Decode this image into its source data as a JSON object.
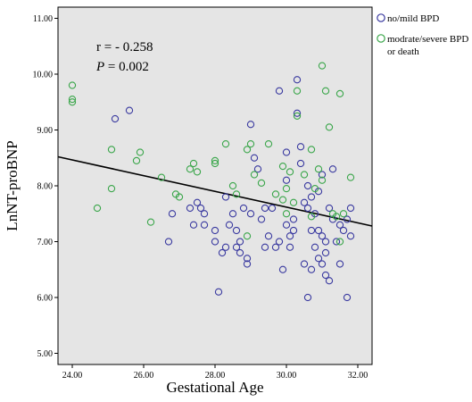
{
  "chart_data": {
    "type": "scatter",
    "title": "",
    "xlabel": "Gestational Age",
    "ylabel": "LnNT-proBNP",
    "xlim": [
      23.6,
      32.4
    ],
    "ylim": [
      4.8,
      11.2
    ],
    "xticks": [
      24,
      26,
      28,
      30,
      32
    ],
    "xtick_labels": [
      "24.00",
      "26.00",
      "28.00",
      "30.00",
      "32.00"
    ],
    "yticks": [
      5,
      6,
      7,
      8,
      9,
      10,
      11
    ],
    "ytick_labels": [
      "5.00",
      "6.00",
      "7.00",
      "8.00",
      "9.00",
      "10.00",
      "11.00"
    ],
    "grid": false,
    "legend_position": "outside-right",
    "background_color": "#e5e5e5",
    "annotations": [
      {
        "label": "r_text",
        "text": "r = - 0.258"
      },
      {
        "label": "p_text",
        "text": "P",
        "value": " = 0.002"
      }
    ],
    "fit_line": {
      "x": [
        23.6,
        32.4
      ],
      "y": [
        8.52,
        7.28
      ],
      "color": "#000000"
    },
    "series": [
      {
        "name": "no/mild BPD",
        "legend_label": "no/mild BPD",
        "color": "#3a3aa0",
        "points": [
          [
            25.2,
            9.2
          ],
          [
            25.6,
            9.35
          ],
          [
            26.7,
            7.0
          ],
          [
            26.8,
            7.5
          ],
          [
            27.3,
            7.6
          ],
          [
            27.4,
            7.3
          ],
          [
            27.5,
            7.7
          ],
          [
            27.6,
            7.6
          ],
          [
            27.7,
            7.5
          ],
          [
            27.7,
            7.3
          ],
          [
            28.0,
            7.0
          ],
          [
            28.0,
            7.2
          ],
          [
            28.1,
            6.1
          ],
          [
            28.2,
            6.8
          ],
          [
            28.3,
            6.9
          ],
          [
            28.4,
            7.3
          ],
          [
            28.5,
            7.5
          ],
          [
            28.6,
            7.2
          ],
          [
            28.6,
            6.9
          ],
          [
            28.7,
            7.0
          ],
          [
            28.7,
            6.8
          ],
          [
            28.8,
            7.6
          ],
          [
            28.9,
            6.7
          ],
          [
            28.9,
            6.6
          ],
          [
            29.0,
            9.1
          ],
          [
            29.0,
            7.5
          ],
          [
            29.1,
            8.5
          ],
          [
            29.2,
            8.3
          ],
          [
            29.3,
            7.4
          ],
          [
            29.4,
            7.6
          ],
          [
            29.4,
            6.9
          ],
          [
            29.5,
            7.1
          ],
          [
            29.6,
            7.6
          ],
          [
            29.7,
            6.9
          ],
          [
            29.8,
            7.0
          ],
          [
            29.9,
            6.5
          ],
          [
            30.0,
            8.1
          ],
          [
            30.0,
            7.3
          ],
          [
            30.1,
            7.1
          ],
          [
            30.1,
            6.9
          ],
          [
            30.2,
            7.4
          ],
          [
            30.2,
            7.2
          ],
          [
            30.3,
            9.9
          ],
          [
            30.3,
            9.3
          ],
          [
            30.4,
            8.7
          ],
          [
            30.4,
            8.4
          ],
          [
            30.5,
            7.7
          ],
          [
            30.5,
            6.6
          ],
          [
            30.6,
            8.0
          ],
          [
            30.6,
            7.6
          ],
          [
            30.7,
            7.8
          ],
          [
            30.7,
            7.2
          ],
          [
            30.7,
            6.5
          ],
          [
            30.8,
            7.5
          ],
          [
            30.8,
            6.9
          ],
          [
            30.9,
            7.9
          ],
          [
            30.9,
            7.2
          ],
          [
            30.9,
            6.7
          ],
          [
            31.0,
            8.2
          ],
          [
            31.0,
            7.1
          ],
          [
            31.0,
            6.6
          ],
          [
            31.1,
            7.0
          ],
          [
            31.1,
            6.8
          ],
          [
            31.2,
            6.3
          ],
          [
            31.2,
            7.6
          ],
          [
            31.3,
            8.3
          ],
          [
            31.3,
            7.4
          ],
          [
            31.4,
            7.0
          ],
          [
            31.5,
            6.6
          ],
          [
            31.5,
            7.3
          ],
          [
            31.6,
            7.2
          ],
          [
            31.7,
            6.0
          ],
          [
            31.7,
            7.4
          ],
          [
            31.8,
            7.6
          ],
          [
            31.8,
            7.1
          ],
          [
            28.3,
            7.8
          ],
          [
            29.8,
            9.7
          ],
          [
            30.0,
            8.6
          ],
          [
            31.1,
            6.4
          ],
          [
            30.6,
            6.0
          ]
        ]
      },
      {
        "name": "modrate/severe BPD or death",
        "legend_label": [
          "modrate/severe BPD",
          "or death"
        ],
        "color": "#3aa64a",
        "points": [
          [
            24.0,
            9.8
          ],
          [
            24.0,
            9.55
          ],
          [
            24.0,
            9.5
          ],
          [
            24.7,
            7.6
          ],
          [
            25.1,
            8.65
          ],
          [
            25.1,
            7.95
          ],
          [
            25.8,
            8.45
          ],
          [
            25.9,
            8.6
          ],
          [
            26.2,
            7.35
          ],
          [
            26.5,
            8.15
          ],
          [
            26.9,
            7.85
          ],
          [
            27.0,
            7.8
          ],
          [
            27.3,
            8.3
          ],
          [
            27.4,
            8.4
          ],
          [
            27.5,
            8.25
          ],
          [
            28.0,
            8.4
          ],
          [
            28.0,
            8.45
          ],
          [
            28.3,
            8.75
          ],
          [
            28.5,
            8.0
          ],
          [
            28.6,
            7.85
          ],
          [
            28.9,
            8.65
          ],
          [
            28.9,
            7.1
          ],
          [
            29.0,
            8.75
          ],
          [
            29.1,
            8.2
          ],
          [
            29.3,
            8.05
          ],
          [
            29.5,
            8.75
          ],
          [
            29.7,
            7.85
          ],
          [
            29.9,
            7.75
          ],
          [
            30.0,
            7.5
          ],
          [
            30.0,
            7.95
          ],
          [
            30.1,
            8.25
          ],
          [
            30.2,
            7.7
          ],
          [
            30.3,
            9.7
          ],
          [
            30.3,
            9.25
          ],
          [
            30.5,
            8.2
          ],
          [
            30.7,
            8.65
          ],
          [
            30.8,
            7.95
          ],
          [
            30.9,
            8.3
          ],
          [
            31.0,
            10.15
          ],
          [
            31.0,
            8.1
          ],
          [
            31.1,
            9.7
          ],
          [
            31.2,
            9.05
          ],
          [
            31.3,
            7.5
          ],
          [
            31.4,
            7.45
          ],
          [
            31.5,
            9.65
          ],
          [
            31.5,
            7.0
          ],
          [
            31.6,
            7.5
          ],
          [
            31.8,
            8.15
          ],
          [
            30.7,
            7.45
          ],
          [
            29.9,
            8.35
          ]
        ]
      }
    ]
  }
}
